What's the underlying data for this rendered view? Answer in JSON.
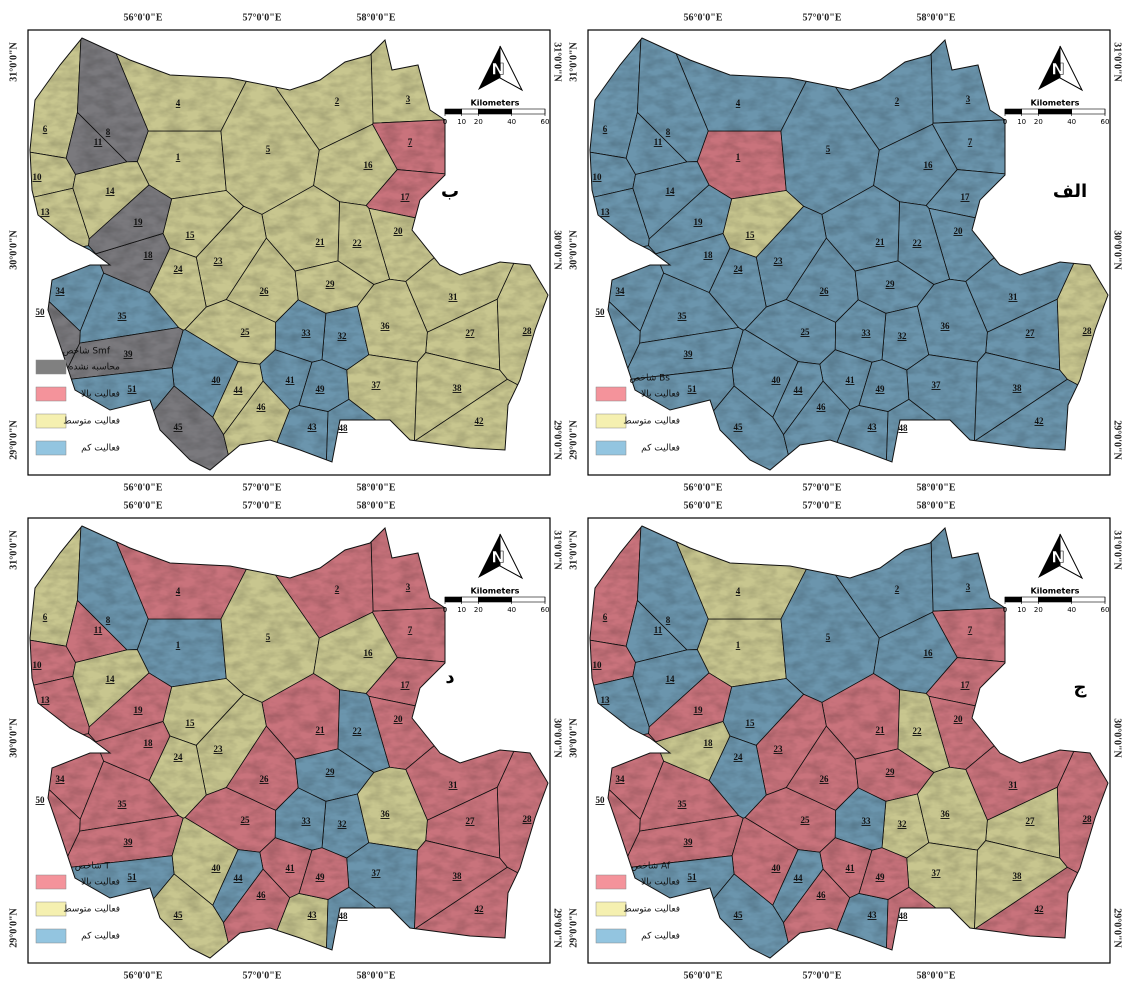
{
  "basins": [
    "1",
    "2",
    "3",
    "4",
    "5",
    "6",
    "7",
    "8",
    "10",
    "11",
    "13",
    "14",
    "15",
    "16",
    "17",
    "18",
    "19",
    "20",
    "21",
    "22",
    "23",
    "24",
    "25",
    "26",
    "27",
    "28",
    "29",
    "31",
    "32",
    "33",
    "34",
    "35",
    "36",
    "37",
    "38",
    "39",
    "40",
    "41",
    "42",
    "43",
    "44",
    "45",
    "46",
    "48",
    "49",
    "50",
    "51"
  ],
  "lon_labels": [
    "56°0'0\"E",
    "57°0'0\"E",
    "58°0'0\"E"
  ],
  "lat_labels": [
    "31°0'0\"N",
    "30°0'0\"N",
    "29°0'0\"N"
  ],
  "north": "N",
  "scale_title": "Kilometers",
  "scale_ticks": [
    0,
    10,
    20,
    40,
    60
  ],
  "panels": [
    {
      "letter": "ب",
      "legend_title": "شاخص Smf",
      "legend": [
        {
          "label": "محاسبه نشده",
          "color": "#808080"
        },
        {
          "label": "فعالیت بالا",
          "color": "#f4939b"
        },
        {
          "label": "فعالیت متوسط",
          "color": "#f5f0b0"
        },
        {
          "label": "فعالیت کم",
          "color": "#93c5e0"
        }
      ],
      "colors": [
        "#c8c68f",
        "#c8c68f",
        "#c8c68f",
        "#c8c68f",
        "#c8c68f",
        "#c8c68f",
        "#c9737c",
        "#7a797d",
        "#c8c68f",
        "#7a797d",
        "#c8c68f",
        "#c8c68f",
        "#c8c68f",
        "#c8c68f",
        "#c9737c",
        "#7a797d",
        "#7a797d",
        "#c8c68f",
        "#c8c68f",
        "#c8c68f",
        "#c8c68f",
        "#c8c68f",
        "#c8c68f",
        "#c8c68f",
        "#c8c68f",
        "#c8c68f",
        "#c8c68f",
        "#c8c68f",
        "#6b95ad",
        "#6b95ad",
        "#6b95ad",
        "#6b95ad",
        "#c8c68f",
        "#c8c68f",
        "#c8c68f",
        "#7a797d",
        "#6b95ad",
        "#6b95ad",
        "#c8c68f",
        "#6b95ad",
        "#c8c68f",
        "#7a797d",
        "#c8c68f",
        "#6b95ad",
        "#6b95ad",
        "#7a797d",
        "#6b95ad"
      ]
    },
    {
      "letter": "الف",
      "legend_title": "شاخص Bs",
      "legend": [
        {
          "label": "فعالیت بالا",
          "color": "#f4939b"
        },
        {
          "label": "فعالیت متوسط",
          "color": "#f5f0b0"
        },
        {
          "label": "فعالیت کم",
          "color": "#93c5e0"
        }
      ],
      "colors": [
        "#c9737c",
        "#6b95ad",
        "#6b95ad",
        "#6b95ad",
        "#6b95ad",
        "#6b95ad",
        "#6b95ad",
        "#6b95ad",
        "#6b95ad",
        "#6b95ad",
        "#6b95ad",
        "#6b95ad",
        "#c8c68f",
        "#6b95ad",
        "#6b95ad",
        "#6b95ad",
        "#6b95ad",
        "#6b95ad",
        "#6b95ad",
        "#6b95ad",
        "#6b95ad",
        "#6b95ad",
        "#6b95ad",
        "#6b95ad",
        "#6b95ad",
        "#c8c68f",
        "#6b95ad",
        "#6b95ad",
        "#6b95ad",
        "#6b95ad",
        "#6b95ad",
        "#6b95ad",
        "#6b95ad",
        "#6b95ad",
        "#6b95ad",
        "#6b95ad",
        "#6b95ad",
        "#6b95ad",
        "#6b95ad",
        "#6b95ad",
        "#6b95ad",
        "#6b95ad",
        "#6b95ad",
        "#6b95ad",
        "#6b95ad",
        "#6b95ad",
        "#6b95ad"
      ]
    },
    {
      "letter": "د",
      "legend_title": "شاخص T",
      "legend": [
        {
          "label": "فعالیت بالا",
          "color": "#f4939b"
        },
        {
          "label": "فعالیت متوسط",
          "color": "#f5f0b0"
        },
        {
          "label": "فعالیت کم",
          "color": "#93c5e0"
        }
      ],
      "colors": [
        "#6b95ad",
        "#c9737c",
        "#c9737c",
        "#c9737c",
        "#c8c68f",
        "#c8c68f",
        "#c9737c",
        "#6b95ad",
        "#c9737c",
        "#c9737c",
        "#c9737c",
        "#c8c68f",
        "#c8c68f",
        "#c8c68f",
        "#c9737c",
        "#c9737c",
        "#c9737c",
        "#c9737c",
        "#c9737c",
        "#6b95ad",
        "#c8c68f",
        "#c8c68f",
        "#c9737c",
        "#c9737c",
        "#c9737c",
        "#c9737c",
        "#6b95ad",
        "#c9737c",
        "#6b95ad",
        "#6b95ad",
        "#c9737c",
        "#c9737c",
        "#c8c68f",
        "#6b95ad",
        "#c9737c",
        "#c9737c",
        "#c8c68f",
        "#c9737c",
        "#c9737c",
        "#c8c68f",
        "#6b95ad",
        "#c8c68f",
        "#c9737c",
        "#6b95ad",
        "#c9737c",
        "#c9737c",
        "#6b95ad"
      ]
    },
    {
      "letter": "ج",
      "legend_title": "شاخص Af",
      "legend": [
        {
          "label": "فعالیت بالا",
          "color": "#f4939b"
        },
        {
          "label": "فعالیت متوسط",
          "color": "#f5f0b0"
        },
        {
          "label": "فعالیت کم",
          "color": "#93c5e0"
        }
      ],
      "colors": [
        "#c8c68f",
        "#6b95ad",
        "#6b95ad",
        "#c8c68f",
        "#6b95ad",
        "#c9737c",
        "#c9737c",
        "#6b95ad",
        "#c9737c",
        "#6b95ad",
        "#6b95ad",
        "#6b95ad",
        "#6b95ad",
        "#6b95ad",
        "#c9737c",
        "#c8c68f",
        "#c9737c",
        "#c9737c",
        "#c9737c",
        "#c8c68f",
        "#c9737c",
        "#6b95ad",
        "#c9737c",
        "#c9737c",
        "#c8c68f",
        "#c9737c",
        "#c9737c",
        "#c9737c",
        "#c8c68f",
        "#6b95ad",
        "#c9737c",
        "#c9737c",
        "#c8c68f",
        "#c8c68f",
        "#c8c68f",
        "#c9737c",
        "#c9737c",
        "#c9737c",
        "#c9737c",
        "#6b95ad",
        "#6b95ad",
        "#6b95ad",
        "#c9737c",
        "#c9737c",
        "#c9737c",
        "#c9737c",
        "#6b95ad"
      ]
    }
  ]
}
